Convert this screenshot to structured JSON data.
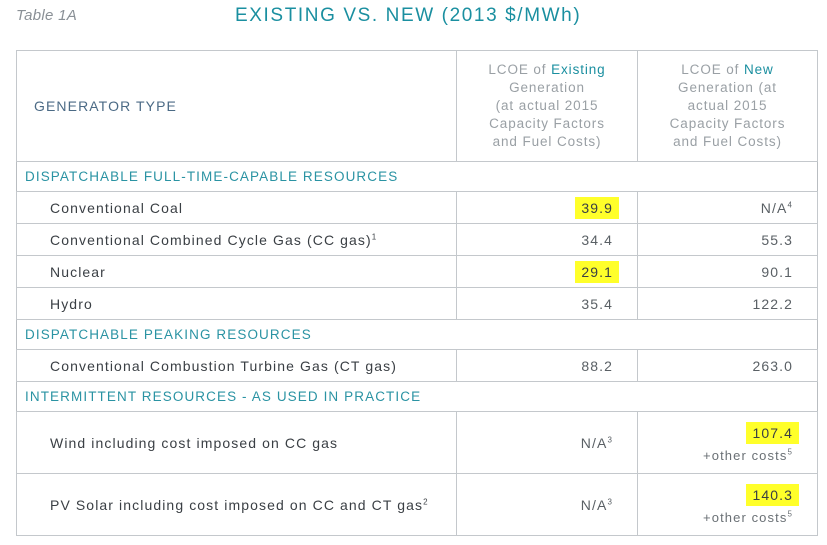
{
  "header": {
    "table_id": "Table 1A",
    "title": "EXISTING VS. NEW (2013 $/MWh)"
  },
  "columns": {
    "type": "GENERATOR TYPE",
    "existing_prefix": "LCOE of ",
    "existing_word": "Existing",
    "existing_rest_1": "Generation",
    "existing_rest_2": "(at actual 2015",
    "existing_rest_3": "Capacity Factors",
    "existing_rest_4": "and Fuel Costs)",
    "new_prefix": "LCOE of ",
    "new_word": "New",
    "new_rest_1": "Generation (at",
    "new_rest_2": "actual 2015",
    "new_rest_3": "Capacity Factors",
    "new_rest_4": "and Fuel Costs)"
  },
  "sections": {
    "dispatchable": "DISPATCHABLE FULL-TIME-CAPABLE RESOURCES",
    "peaking": "DISPATCHABLE PEAKING RESOURCES",
    "intermittent": "INTERMITTENT RESOURCES - AS USED IN PRACTICE"
  },
  "rows": {
    "coal": {
      "name": "Conventional Coal",
      "existing": "39.9",
      "new": "N/A",
      "new_sup": "4"
    },
    "ccgas": {
      "name": "Conventional Combined Cycle Gas (CC gas)",
      "name_sup": "1",
      "existing": "34.4",
      "new": "55.3"
    },
    "nuclear": {
      "name": "Nuclear",
      "existing": "29.1",
      "new": "90.1"
    },
    "hydro": {
      "name": "Hydro",
      "existing": "35.4",
      "new": "122.2"
    },
    "ctgas": {
      "name": "Conventional Combustion Turbine Gas (CT gas)",
      "existing": "88.2",
      "new": "263.0"
    },
    "wind": {
      "name": "Wind including cost imposed on CC gas",
      "existing": "N/A",
      "existing_sup": "3",
      "new": "107.4",
      "new_note": "+other costs",
      "new_note_sup": "5"
    },
    "solar": {
      "name": "PV Solar including cost imposed on CC and CT gas",
      "name_sup": "2",
      "existing": "N/A",
      "existing_sup": "3",
      "new": "140.3",
      "new_note": "+other costs",
      "new_note_sup": "5"
    }
  },
  "colors": {
    "accent": "#1a8fa0",
    "highlight": "#ffff2a"
  }
}
